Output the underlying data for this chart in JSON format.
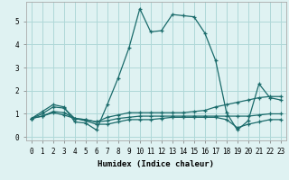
{
  "xlabel": "Humidex (Indice chaleur)",
  "bg_color": "#dff2f2",
  "line_color": "#1a6b6b",
  "grid_color": "#afd8d8",
  "xlim": [
    -0.5,
    23.5
  ],
  "ylim": [
    -0.15,
    5.85
  ],
  "xticks": [
    0,
    1,
    2,
    3,
    4,
    5,
    6,
    7,
    8,
    9,
    10,
    11,
    12,
    13,
    14,
    15,
    16,
    17,
    18,
    19,
    20,
    21,
    22,
    23
  ],
  "yticks": [
    0,
    1,
    2,
    3,
    4,
    5
  ],
  "lines": [
    {
      "x": [
        0,
        1,
        2,
        3,
        4,
        5,
        6,
        7,
        8,
        9,
        10,
        11,
        12,
        13,
        14,
        15,
        16,
        17,
        18,
        19,
        20,
        21,
        22,
        23
      ],
      "y": [
        0.8,
        1.1,
        1.4,
        1.3,
        0.65,
        0.6,
        0.3,
        1.4,
        2.55,
        3.85,
        5.55,
        4.55,
        4.6,
        5.3,
        5.25,
        5.2,
        4.5,
        3.3,
        1.05,
        0.3,
        0.7,
        2.3,
        1.7,
        1.6
      ]
    },
    {
      "x": [
        0,
        1,
        2,
        3,
        4,
        5,
        6,
        7,
        8,
        9,
        10,
        11,
        12,
        13,
        14,
        15,
        16,
        17,
        18,
        19,
        20,
        21,
        22,
        23
      ],
      "y": [
        0.8,
        1.0,
        1.3,
        1.25,
        0.8,
        0.75,
        0.65,
        0.85,
        0.95,
        1.05,
        1.05,
        1.05,
        1.05,
        1.05,
        1.05,
        1.1,
        1.15,
        1.3,
        1.4,
        1.5,
        1.6,
        1.7,
        1.75,
        1.75
      ]
    },
    {
      "x": [
        0,
        1,
        2,
        3,
        4,
        5,
        6,
        7,
        8,
        9,
        10,
        11,
        12,
        13,
        14,
        15,
        16,
        17,
        18,
        19,
        20,
        21,
        22,
        23
      ],
      "y": [
        0.8,
        0.9,
        1.1,
        1.05,
        0.8,
        0.75,
        0.65,
        0.7,
        0.8,
        0.85,
        0.9,
        0.9,
        0.9,
        0.9,
        0.9,
        0.9,
        0.9,
        0.9,
        0.9,
        0.9,
        0.9,
        0.95,
        1.0,
        1.0
      ]
    },
    {
      "x": [
        0,
        1,
        2,
        3,
        4,
        5,
        6,
        7,
        8,
        9,
        10,
        11,
        12,
        13,
        14,
        15,
        16,
        17,
        18,
        19,
        20,
        21,
        22,
        23
      ],
      "y": [
        0.8,
        0.9,
        1.05,
        0.95,
        0.8,
        0.7,
        0.55,
        0.55,
        0.65,
        0.75,
        0.75,
        0.75,
        0.8,
        0.85,
        0.85,
        0.85,
        0.85,
        0.85,
        0.75,
        0.4,
        0.55,
        0.65,
        0.75,
        0.75
      ]
    }
  ]
}
